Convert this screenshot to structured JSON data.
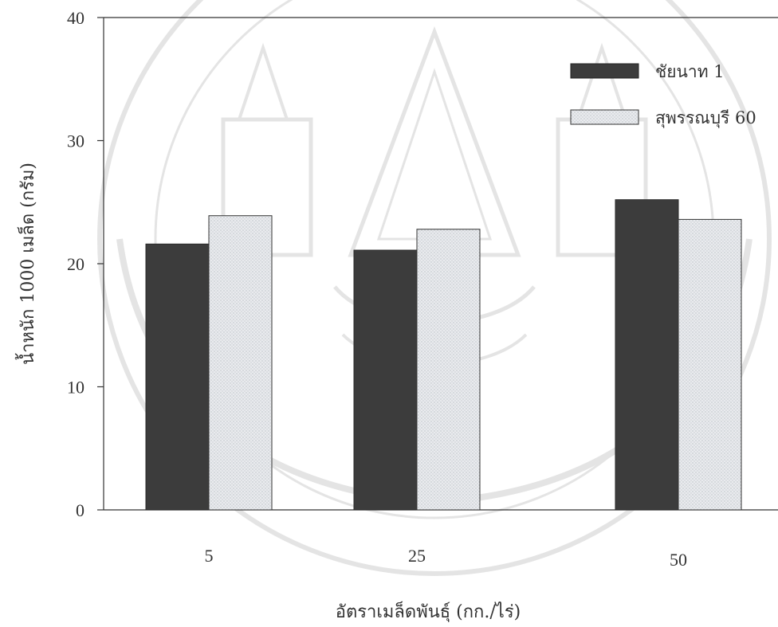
{
  "chart_data": {
    "type": "bar",
    "title": "",
    "xlabel": "อัตราเมล็ดพันธุ์ (กก./ไร่)",
    "ylabel": "น้ำหนัก 1000 เมล็ด (กรัม)",
    "categories": [
      "5",
      "25",
      "50"
    ],
    "ylim": [
      0,
      40
    ],
    "yticks": [
      "0",
      "10",
      "20",
      "30",
      "40"
    ],
    "grid": false,
    "legend_position": "top-right",
    "series": [
      {
        "name": "ชัยนาท 1",
        "values": [
          21.6,
          21.1,
          25.2
        ],
        "color": "#3c3c3c"
      },
      {
        "name": "สุพรรณบุรี 60",
        "values": [
          23.9,
          22.8,
          23.6
        ],
        "color": "#e4e6ea"
      }
    ]
  },
  "colors": {
    "axis": "#333333",
    "dark_bar": "#3c3c3c",
    "light_bar": "#e4e6ea",
    "watermark": "#8a8a8a"
  },
  "watermark_icon": "university-seal-icon"
}
